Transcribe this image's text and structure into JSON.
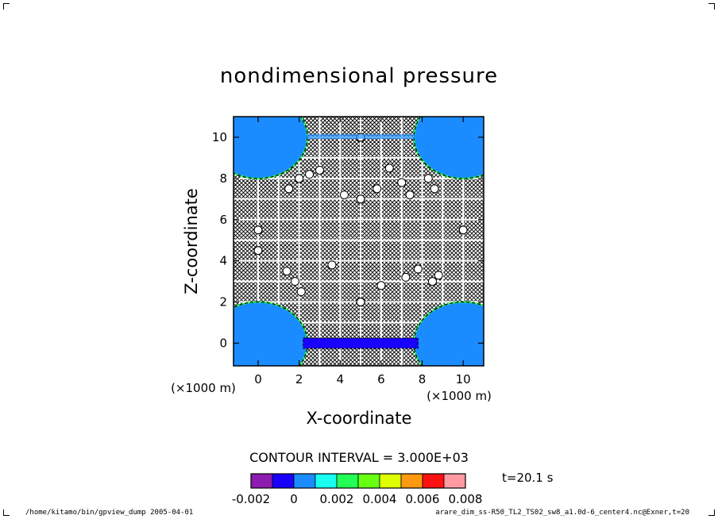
{
  "chart_data": {
    "type": "heatmap",
    "title": "nondimensional pressure",
    "xlabel": "X-coordinate",
    "ylabel": "Z-coordinate",
    "x_unit_label_left": "(×1000 m)",
    "x_unit_label_right": "(×1000 m)",
    "xlim": [
      -1.2,
      11
    ],
    "ylim": [
      -1.1,
      11
    ],
    "x_ticks": [
      0,
      2,
      4,
      6,
      8,
      10
    ],
    "y_ticks": [
      0,
      2,
      4,
      6,
      8,
      10
    ],
    "x_tick_labels": [
      "0",
      "2",
      "4",
      "6",
      "8",
      "10"
    ],
    "y_tick_labels": [
      "0",
      "2",
      "4",
      "6",
      "8",
      "10"
    ],
    "contour_interval_label": "CONTOUR INTERVAL = 3.000E+03",
    "time_label": "t=20.1 s",
    "colorbar": {
      "colors": [
        "#8e1cb0",
        "#1a00ff",
        "#1b8cff",
        "#19fff2",
        "#22ff55",
        "#66ff11",
        "#ddff00",
        "#ff9911",
        "#ff1111",
        "#ff9aa2"
      ],
      "labels": [
        "-0.002",
        "0",
        "0.002",
        "0.004",
        "0.006",
        "0.008"
      ]
    }
  },
  "footer": {
    "left": "/home/kitamo/bin/gpview_dump  2005-04-01",
    "right": "arare_dim_ss-R50_TL2_TS02_sw8_a1.0d-6_center4.nc@Exner,t=20"
  }
}
